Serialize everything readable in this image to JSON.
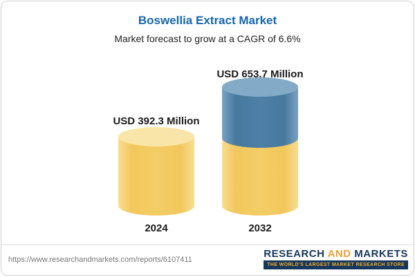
{
  "header": {
    "title": "Boswellia Extract Market",
    "subtitle": "Market forecast to grow at a CAGR of 6.6%"
  },
  "chart_data": {
    "type": "bar",
    "subtype": "3d-cylinder",
    "title": "Boswellia Extract Market",
    "subtitle": "Market forecast to grow at a CAGR of 6.6%",
    "cagr_percent": 6.6,
    "unit": "USD Million",
    "categories": [
      "2024",
      "2032"
    ],
    "values": [
      392.3,
      653.7
    ],
    "value_labels": [
      "USD 392.3 Million",
      "USD 653.7 Million"
    ],
    "segments_2032": {
      "base": 392.3,
      "growth": 261.4
    },
    "ylim": [
      0,
      700
    ],
    "grid": false,
    "legend": false,
    "colors": {
      "base_yellow": "#F4CD66",
      "growth_blue": "#4E80A8"
    }
  },
  "footer": {
    "url": "https://www.researchandmarkets.com/reports/6107411",
    "logo": {
      "research": "RESEARCH",
      "and": "AND",
      "markets": "MARKETS",
      "tagline": "THE WORLD'S LARGEST MARKET RESEARCH STORE"
    }
  }
}
